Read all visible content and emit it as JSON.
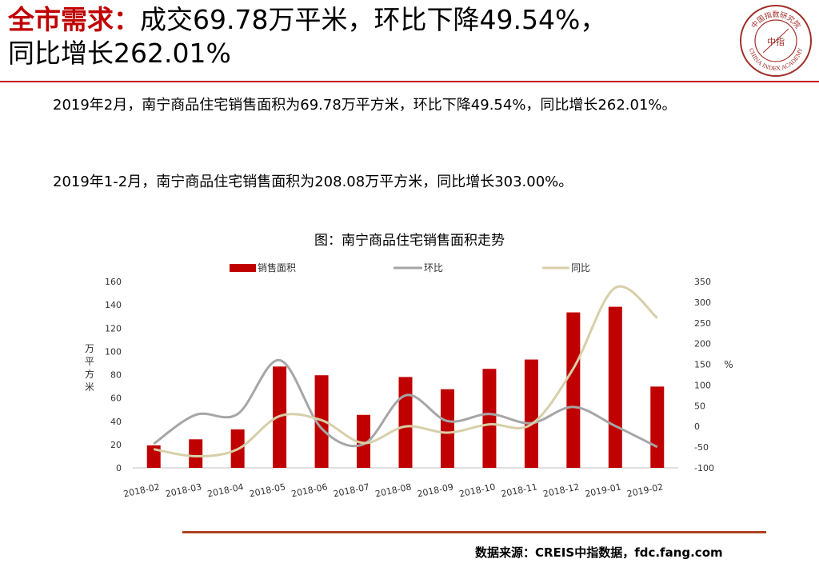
{
  "header": {
    "title_highlight": "全市需求：",
    "title_line1_rest": "成交69.78万平米，环比下降49.54%，",
    "title_line2": "同比增长262.01%",
    "logo_text_top": "中国指数研究院",
    "logo_center": "中指",
    "logo_text_bottom": "CHINA INDEX ACADEMY"
  },
  "body": {
    "para1": "2019年2月，南宁商品住宅销售面积为69.78万平方米，环比下降49.54%，同比增长262.01%。",
    "para2": "2019年1-2月，南宁商品住宅销售面积为208.08万平方米，同比增长303.00%。"
  },
  "chart_title": "图：南宁商品住宅销售面积走势",
  "source": "数据来源：CREIS中指数据，fdc.fang.com",
  "colors": {
    "accent": "#c00000",
    "bar": "#c00000",
    "mom_line": "#a6a6a6",
    "yoy_line": "#d7cfa8",
    "rule": "#b04020"
  },
  "chart_data": {
    "type": "bar",
    "title": "图：南宁商品住宅销售面积走势",
    "categories": [
      "2018-02",
      "2018-03",
      "2018-04",
      "2018-05",
      "2018-06",
      "2018-07",
      "2018-08",
      "2018-09",
      "2018-10",
      "2018-11",
      "2018-12",
      "2019-01",
      "2019-02"
    ],
    "series": [
      {
        "name": "销售面积",
        "type": "bar",
        "axis": "left",
        "values": [
          19.3,
          24.5,
          33,
          87,
          79.5,
          45.5,
          78,
          67.5,
          85,
          93,
          133.5,
          138.3,
          69.78
        ]
      },
      {
        "name": "环比",
        "type": "line",
        "axis": "right",
        "values": [
          -42,
          28,
          30,
          160,
          -5,
          -43,
          75,
          13,
          30,
          8,
          47,
          1,
          -49.54
        ]
      },
      {
        "name": "同比",
        "type": "line",
        "axis": "right",
        "values": [
          -55,
          -72,
          -55,
          25,
          15,
          -40,
          0,
          -15,
          5,
          5,
          140,
          335,
          262.01
        ]
      }
    ],
    "ylabel": "万平方米",
    "ylabel_right": "%",
    "ylim": [
      0,
      160
    ],
    "yticks": [
      0,
      20,
      40,
      60,
      80,
      100,
      120,
      140,
      160
    ],
    "ylim_right": [
      -100,
      350
    ],
    "yticks_right": [
      -100,
      -50,
      0,
      50,
      100,
      150,
      200,
      250,
      300,
      350
    ],
    "legend_position": "top",
    "grid": false
  }
}
